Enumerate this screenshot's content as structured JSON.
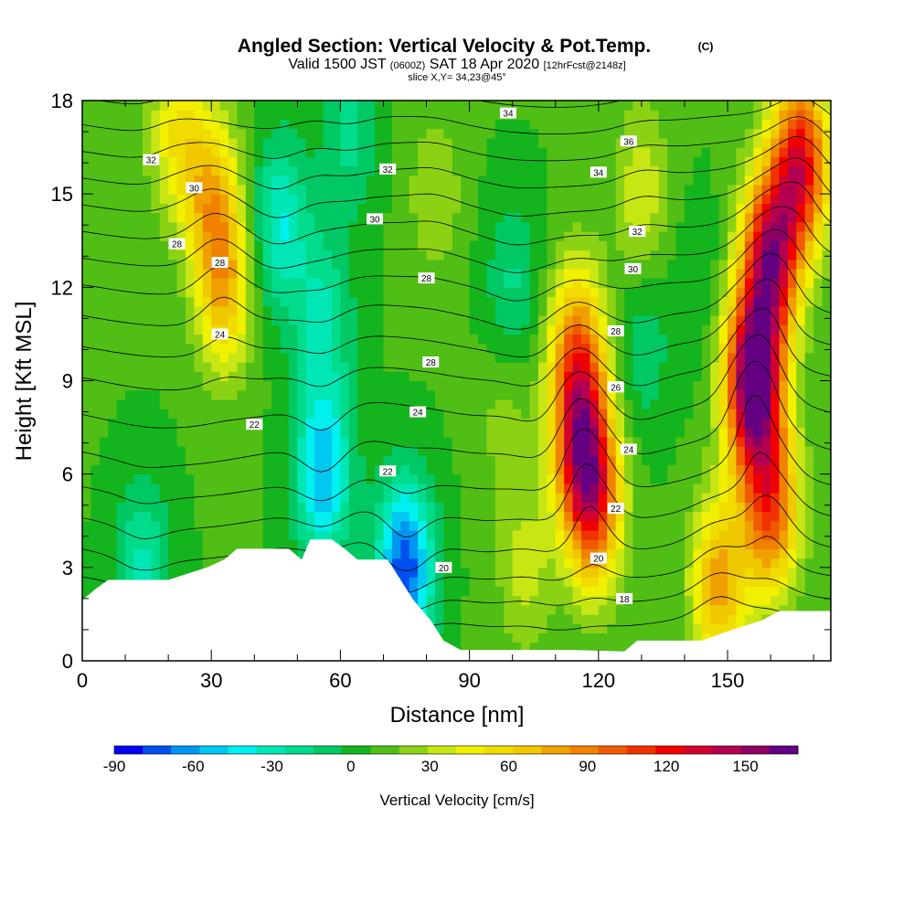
{
  "chart_data": {
    "type": "heatmap",
    "title": "Angled Section: Vertical Velocity & Pot.Temp.",
    "title_mark": "(C)",
    "subtitle_pre": "Valid 1500 JST",
    "subtitle_utc": "(0600Z)",
    "subtitle_mid": "SAT 18 Apr 2020",
    "subtitle_fcst": "[12hrFcst@2148z]",
    "slice": "slice X,Y= 34,23@45°",
    "xlabel": "Distance [nm]",
    "ylabel": "Height [Kft MSL]",
    "xlim": [
      0,
      174
    ],
    "ylim": [
      0,
      18
    ],
    "x_ticks": [
      0,
      30,
      60,
      90,
      120,
      150
    ],
    "y_ticks": [
      0,
      3,
      6,
      9,
      12,
      15,
      18
    ],
    "colorbar": {
      "label": "Vertical Velocity [cm/s]",
      "min": -90,
      "max": 170,
      "tick_labels": [
        -90,
        -60,
        -30,
        0,
        30,
        60,
        90,
        120,
        150
      ],
      "colors": [
        "#0000f0",
        "#0050f0",
        "#0096f0",
        "#00c8f0",
        "#00f0f0",
        "#00e6b4",
        "#00dc8c",
        "#00c864",
        "#14b41e",
        "#50be14",
        "#8cd214",
        "#c8e614",
        "#f0f000",
        "#f0dc00",
        "#f0c800",
        "#f0a000",
        "#f08200",
        "#f05a00",
        "#f03200",
        "#f00000",
        "#d2002d",
        "#b40050",
        "#8c0064",
        "#640082"
      ]
    },
    "terrain": [
      [
        0,
        1.95
      ],
      [
        3,
        2.3
      ],
      [
        6,
        2.6
      ],
      [
        20,
        2.6
      ],
      [
        29,
        3.0
      ],
      [
        33,
        3.25
      ],
      [
        36,
        3.6
      ],
      [
        48,
        3.6
      ],
      [
        51,
        3.25
      ],
      [
        53,
        3.9
      ],
      [
        58,
        3.9
      ],
      [
        61,
        3.6
      ],
      [
        64,
        3.25
      ],
      [
        71,
        3.25
      ],
      [
        74,
        2.6
      ],
      [
        77,
        1.95
      ],
      [
        81,
        1.3
      ],
      [
        84,
        0.65
      ],
      [
        88,
        0.35
      ],
      [
        98,
        0.35
      ],
      [
        114,
        0.35
      ],
      [
        126,
        0.3
      ],
      [
        129,
        0.65
      ],
      [
        144,
        0.65
      ],
      [
        150,
        0.95
      ],
      [
        158,
        1.3
      ],
      [
        162,
        1.6
      ],
      [
        174,
        1.6
      ]
    ],
    "velocity_features": [
      {
        "x": 75,
        "z": 3,
        "w": -85
      },
      {
        "x": 56,
        "z": 6,
        "w": -65
      },
      {
        "x": 46,
        "z": 14,
        "w": -45
      },
      {
        "x": 56,
        "z": 11,
        "w": -35
      },
      {
        "x": 14,
        "z": 3,
        "w": -35
      },
      {
        "x": 100,
        "z": 12,
        "w": -25
      },
      {
        "x": 130,
        "z": 10,
        "w": -20
      },
      {
        "x": 62,
        "z": 17,
        "w": -25
      },
      {
        "x": 33,
        "z": 12,
        "w": 60
      },
      {
        "x": 30,
        "z": 15,
        "w": 55
      },
      {
        "x": 22,
        "z": 17,
        "w": 40
      },
      {
        "x": 116,
        "z": 7,
        "w": 100
      },
      {
        "x": 115,
        "z": 10,
        "w": 75
      },
      {
        "x": 119,
        "z": 5,
        "w": 85
      },
      {
        "x": 156,
        "z": 9,
        "w": 165
      },
      {
        "x": 160,
        "z": 13,
        "w": 130
      },
      {
        "x": 167,
        "z": 16,
        "w": 115
      },
      {
        "x": 160,
        "z": 5,
        "w": 95
      },
      {
        "x": 148,
        "z": 2.5,
        "w": 70
      },
      {
        "x": 82,
        "z": 15,
        "w": 20
      },
      {
        "x": 103,
        "z": 3,
        "w": 25
      },
      {
        "x": 130,
        "z": 15,
        "w": 30
      },
      {
        "x": 98,
        "z": 8,
        "w": 15
      },
      {
        "x": 143,
        "z": 12,
        "w": -10
      }
    ],
    "theta_levels": [
      17,
      18,
      19,
      20,
      21,
      22,
      23,
      24,
      25,
      26,
      27,
      28,
      29,
      30,
      31,
      32,
      33,
      34,
      35,
      36,
      37
    ],
    "theta_profile": [
      {
        "z": 0,
        "t": 15.5
      },
      {
        "z": 3,
        "t": 19.5
      },
      {
        "z": 6,
        "t": 22.5
      },
      {
        "z": 9,
        "t": 25.0
      },
      {
        "z": 12,
        "t": 28.0
      },
      {
        "z": 15,
        "t": 31.5
      },
      {
        "z": 18,
        "t": 35.0
      }
    ],
    "contour_labels": [
      {
        "text": "34",
        "x": 99,
        "z": 17.6
      },
      {
        "text": "36",
        "x": 127,
        "z": 16.7
      },
      {
        "text": "32",
        "x": 16,
        "z": 16.1
      },
      {
        "text": "32",
        "x": 71,
        "z": 15.8
      },
      {
        "text": "34",
        "x": 120,
        "z": 15.7
      },
      {
        "text": "30",
        "x": 26,
        "z": 15.2
      },
      {
        "text": "30",
        "x": 68,
        "z": 14.2
      },
      {
        "text": "32",
        "x": 129,
        "z": 13.8
      },
      {
        "text": "28",
        "x": 22,
        "z": 13.4
      },
      {
        "text": "28",
        "x": 32,
        "z": 12.8
      },
      {
        "text": "30",
        "x": 128,
        "z": 12.6
      },
      {
        "text": "28",
        "x": 80,
        "z": 12.3
      },
      {
        "text": "28",
        "x": 124,
        "z": 10.6
      },
      {
        "text": "24",
        "x": 32,
        "z": 10.5
      },
      {
        "text": "28",
        "x": 81,
        "z": 9.6
      },
      {
        "text": "26",
        "x": 124,
        "z": 8.8
      },
      {
        "text": "24",
        "x": 78,
        "z": 8.0
      },
      {
        "text": "22",
        "x": 40,
        "z": 7.6
      },
      {
        "text": "24",
        "x": 127,
        "z": 6.8
      },
      {
        "text": "22",
        "x": 71,
        "z": 6.1
      },
      {
        "text": "22",
        "x": 124,
        "z": 4.9
      },
      {
        "text": "20",
        "x": 84,
        "z": 3.0
      },
      {
        "text": "20",
        "x": 120,
        "z": 3.3
      },
      {
        "text": "18",
        "x": 126,
        "z": 2.0
      }
    ]
  }
}
